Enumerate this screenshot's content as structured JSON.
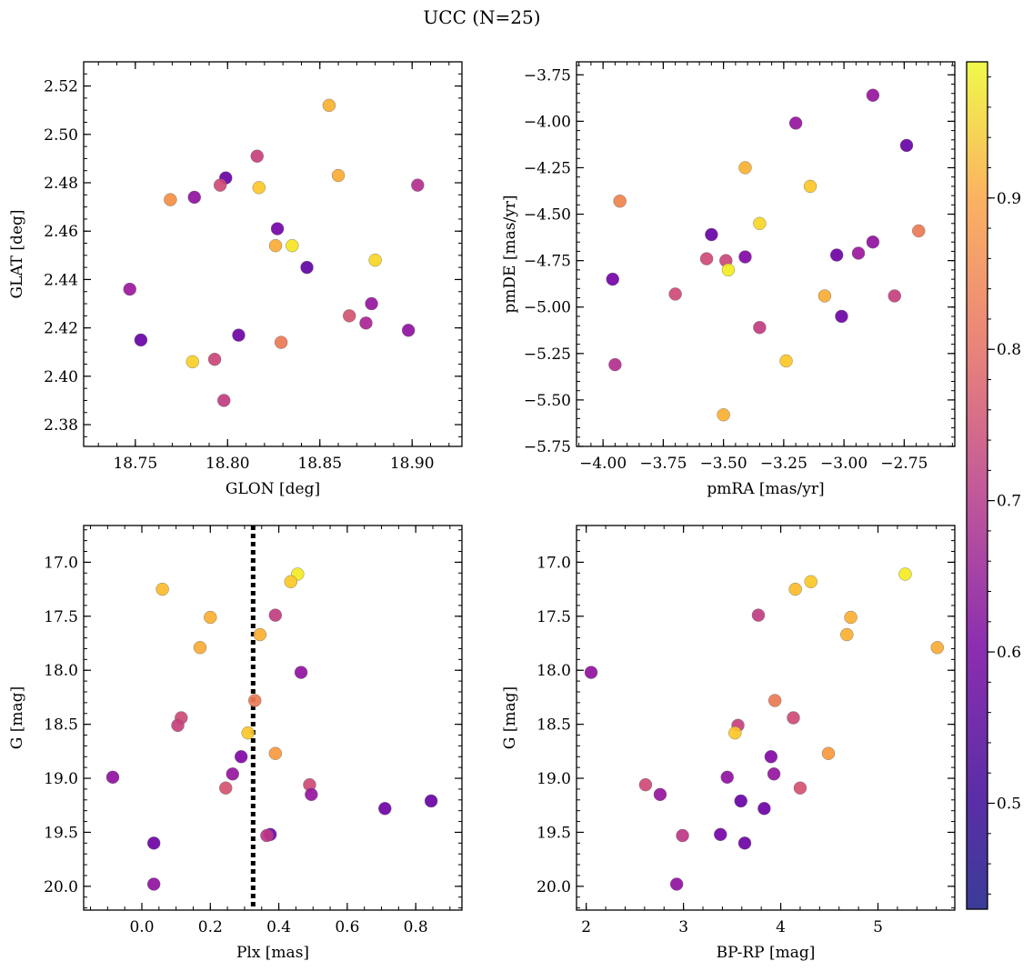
{
  "figure_title": "UCC (N=25)",
  "colorbar": {
    "cmap": "plasma",
    "range": [
      0.43,
      0.99
    ],
    "ticks": [
      0.5,
      0.6,
      0.7,
      0.8,
      0.9
    ],
    "tick_labels": [
      "0.5",
      "0.6",
      "0.7",
      "0.8",
      "0.9"
    ]
  },
  "chart_data": [
    {
      "type": "scatter",
      "xlabel": "GLON [deg]",
      "ylabel": "GLAT [deg]",
      "xlim": [
        18.722,
        18.927
      ],
      "ylim": [
        2.371,
        2.53
      ],
      "xticks": [
        18.75,
        18.8,
        18.85,
        18.9
      ],
      "xtick_labels": [
        "18.75",
        "18.80",
        "18.85",
        "18.90"
      ],
      "yticks": [
        2.38,
        2.4,
        2.42,
        2.44,
        2.46,
        2.48,
        2.5,
        2.52
      ],
      "ytick_labels": [
        "2.38",
        "2.40",
        "2.42",
        "2.44",
        "2.46",
        "2.48",
        "2.50",
        "2.52"
      ],
      "x_minor_step": 0.01,
      "y_minor_step": 0.005,
      "points": [
        {
          "x": 18.855,
          "y": 2.512,
          "c": 0.88
        },
        {
          "x": 18.816,
          "y": 2.491,
          "c": 0.66
        },
        {
          "x": 18.86,
          "y": 2.483,
          "c": 0.87
        },
        {
          "x": 18.799,
          "y": 2.482,
          "c": 0.48
        },
        {
          "x": 18.903,
          "y": 2.479,
          "c": 0.62
        },
        {
          "x": 18.796,
          "y": 2.479,
          "c": 0.68
        },
        {
          "x": 18.817,
          "y": 2.478,
          "c": 0.92
        },
        {
          "x": 18.782,
          "y": 2.474,
          "c": 0.55
        },
        {
          "x": 18.769,
          "y": 2.473,
          "c": 0.82
        },
        {
          "x": 18.827,
          "y": 2.461,
          "c": 0.5
        },
        {
          "x": 18.826,
          "y": 2.454,
          "c": 0.87
        },
        {
          "x": 18.835,
          "y": 2.454,
          "c": 0.96
        },
        {
          "x": 18.88,
          "y": 2.448,
          "c": 0.94
        },
        {
          "x": 18.843,
          "y": 2.445,
          "c": 0.47
        },
        {
          "x": 18.747,
          "y": 2.436,
          "c": 0.57
        },
        {
          "x": 18.878,
          "y": 2.43,
          "c": 0.56
        },
        {
          "x": 18.866,
          "y": 2.425,
          "c": 0.7
        },
        {
          "x": 18.875,
          "y": 2.422,
          "c": 0.6
        },
        {
          "x": 18.898,
          "y": 2.419,
          "c": 0.55
        },
        {
          "x": 18.806,
          "y": 2.417,
          "c": 0.49
        },
        {
          "x": 18.753,
          "y": 2.415,
          "c": 0.48
        },
        {
          "x": 18.829,
          "y": 2.414,
          "c": 0.78
        },
        {
          "x": 18.781,
          "y": 2.406,
          "c": 0.93
        },
        {
          "x": 18.793,
          "y": 2.407,
          "c": 0.67
        },
        {
          "x": 18.798,
          "y": 2.39,
          "c": 0.65
        }
      ]
    },
    {
      "type": "scatter",
      "xlabel": "pmRA [mas/yr]",
      "ylabel": "pmDE [mas/yr]",
      "xlim": [
        -4.11,
        -2.54
      ],
      "ylim": [
        -5.75,
        -3.68
      ],
      "xticks": [
        -4.0,
        -3.75,
        -3.5,
        -3.25,
        -3.0,
        -2.75
      ],
      "xtick_labels": [
        "−4.00",
        "−3.75",
        "−3.50",
        "−3.25",
        "−3.00",
        "−2.75"
      ],
      "yticks": [
        -5.75,
        -5.5,
        -5.25,
        -5.0,
        -4.75,
        -4.5,
        -4.25,
        -4.0,
        -3.75
      ],
      "ytick_labels": [
        "−5.75",
        "−5.50",
        "−5.25",
        "−5.00",
        "−4.75",
        "−4.50",
        "−4.25",
        "−4.00",
        "−3.75"
      ],
      "x_minor_step": 0.05,
      "y_minor_step": 0.05,
      "points": [
        {
          "x": -2.88,
          "y": -3.86,
          "c": 0.56
        },
        {
          "x": -3.2,
          "y": -4.01,
          "c": 0.56
        },
        {
          "x": -2.74,
          "y": -4.13,
          "c": 0.48
        },
        {
          "x": -3.41,
          "y": -4.25,
          "c": 0.88
        },
        {
          "x": -3.14,
          "y": -4.35,
          "c": 0.92
        },
        {
          "x": -3.93,
          "y": -4.43,
          "c": 0.8
        },
        {
          "x": -3.35,
          "y": -4.55,
          "c": 0.94
        },
        {
          "x": -2.69,
          "y": -4.59,
          "c": 0.78
        },
        {
          "x": -3.55,
          "y": -4.61,
          "c": 0.48
        },
        {
          "x": -2.88,
          "y": -4.65,
          "c": 0.55
        },
        {
          "x": -3.03,
          "y": -4.72,
          "c": 0.49
        },
        {
          "x": -2.94,
          "y": -4.71,
          "c": 0.57
        },
        {
          "x": -3.41,
          "y": -4.73,
          "c": 0.52
        },
        {
          "x": -3.57,
          "y": -4.74,
          "c": 0.68
        },
        {
          "x": -3.49,
          "y": -4.75,
          "c": 0.67
        },
        {
          "x": -3.48,
          "y": -4.8,
          "c": 0.97
        },
        {
          "x": -3.96,
          "y": -4.85,
          "c": 0.5
        },
        {
          "x": -3.7,
          "y": -4.93,
          "c": 0.68
        },
        {
          "x": -3.08,
          "y": -4.94,
          "c": 0.87
        },
        {
          "x": -2.79,
          "y": -4.94,
          "c": 0.66
        },
        {
          "x": -3.01,
          "y": -5.05,
          "c": 0.49
        },
        {
          "x": -3.35,
          "y": -5.11,
          "c": 0.65
        },
        {
          "x": -3.24,
          "y": -5.29,
          "c": 0.92
        },
        {
          "x": -3.95,
          "y": -5.31,
          "c": 0.62
        },
        {
          "x": -3.5,
          "y": -5.58,
          "c": 0.88
        }
      ]
    },
    {
      "type": "scatter",
      "xlabel": "Plx [mas]",
      "ylabel": "G [mag]",
      "xlim": [
        -0.17,
        0.935
      ],
      "ylim": [
        20.22,
        16.66
      ],
      "xticks": [
        0.0,
        0.2,
        0.4,
        0.6,
        0.8
      ],
      "xtick_labels": [
        "0.0",
        "0.2",
        "0.4",
        "0.6",
        "0.8"
      ],
      "yticks": [
        17.0,
        17.5,
        18.0,
        18.5,
        19.0,
        19.5,
        20.0
      ],
      "ytick_labels": [
        "17.0",
        "17.5",
        "18.0",
        "18.5",
        "19.0",
        "19.5",
        "20.0"
      ],
      "x_minor_step": 0.05,
      "y_minor_step": 0.1,
      "vline": {
        "x": 0.325,
        "style": "dotted"
      },
      "points": [
        {
          "x": 0.455,
          "y": 17.11,
          "c": 0.97
        },
        {
          "x": 0.435,
          "y": 17.18,
          "c": 0.92
        },
        {
          "x": 0.06,
          "y": 17.25,
          "c": 0.9
        },
        {
          "x": 0.39,
          "y": 17.49,
          "c": 0.65
        },
        {
          "x": 0.2,
          "y": 17.51,
          "c": 0.88
        },
        {
          "x": 0.345,
          "y": 17.67,
          "c": 0.88
        },
        {
          "x": 0.17,
          "y": 17.79,
          "c": 0.87
        },
        {
          "x": 0.465,
          "y": 18.02,
          "c": 0.55
        },
        {
          "x": 0.33,
          "y": 18.28,
          "c": 0.78
        },
        {
          "x": 0.115,
          "y": 18.44,
          "c": 0.68
        },
        {
          "x": 0.105,
          "y": 18.51,
          "c": 0.66
        },
        {
          "x": 0.31,
          "y": 18.58,
          "c": 0.92
        },
        {
          "x": 0.39,
          "y": 18.77,
          "c": 0.84
        },
        {
          "x": 0.29,
          "y": 18.8,
          "c": 0.52
        },
        {
          "x": 0.265,
          "y": 18.96,
          "c": 0.56
        },
        {
          "x": -0.085,
          "y": 18.99,
          "c": 0.55
        },
        {
          "x": 0.49,
          "y": 19.06,
          "c": 0.68
        },
        {
          "x": 0.245,
          "y": 19.09,
          "c": 0.7
        },
        {
          "x": 0.495,
          "y": 19.15,
          "c": 0.56
        },
        {
          "x": 0.845,
          "y": 19.21,
          "c": 0.48
        },
        {
          "x": 0.71,
          "y": 19.28,
          "c": 0.49
        },
        {
          "x": 0.375,
          "y": 19.52,
          "c": 0.5
        },
        {
          "x": 0.365,
          "y": 19.53,
          "c": 0.64
        },
        {
          "x": 0.035,
          "y": 19.6,
          "c": 0.49
        },
        {
          "x": 0.035,
          "y": 19.98,
          "c": 0.55
        }
      ]
    },
    {
      "type": "scatter",
      "xlabel": "BP-RP [mag]",
      "ylabel": "G [mag]",
      "xlim": [
        1.9,
        5.79
      ],
      "ylim": [
        20.22,
        16.66
      ],
      "xticks": [
        2,
        3,
        4,
        5
      ],
      "xtick_labels": [
        "2",
        "3",
        "4",
        "5"
      ],
      "yticks": [
        17.0,
        17.5,
        18.0,
        18.5,
        19.0,
        19.5,
        20.0
      ],
      "ytick_labels": [
        "17.0",
        "17.5",
        "18.0",
        "18.5",
        "19.0",
        "19.5",
        "20.0"
      ],
      "x_minor_step": 0.2,
      "y_minor_step": 0.1,
      "points": [
        {
          "x": 5.28,
          "y": 17.11,
          "c": 0.97
        },
        {
          "x": 4.31,
          "y": 17.18,
          "c": 0.92
        },
        {
          "x": 4.15,
          "y": 17.25,
          "c": 0.9
        },
        {
          "x": 3.77,
          "y": 17.49,
          "c": 0.65
        },
        {
          "x": 4.72,
          "y": 17.51,
          "c": 0.88
        },
        {
          "x": 4.68,
          "y": 17.67,
          "c": 0.88
        },
        {
          "x": 5.61,
          "y": 17.79,
          "c": 0.87
        },
        {
          "x": 2.05,
          "y": 18.02,
          "c": 0.55
        },
        {
          "x": 3.94,
          "y": 18.28,
          "c": 0.78
        },
        {
          "x": 4.13,
          "y": 18.44,
          "c": 0.68
        },
        {
          "x": 3.56,
          "y": 18.51,
          "c": 0.66
        },
        {
          "x": 3.53,
          "y": 18.58,
          "c": 0.92
        },
        {
          "x": 4.49,
          "y": 18.77,
          "c": 0.84
        },
        {
          "x": 3.9,
          "y": 18.8,
          "c": 0.52
        },
        {
          "x": 3.93,
          "y": 18.96,
          "c": 0.56
        },
        {
          "x": 3.45,
          "y": 18.99,
          "c": 0.55
        },
        {
          "x": 2.61,
          "y": 19.06,
          "c": 0.68
        },
        {
          "x": 4.2,
          "y": 19.09,
          "c": 0.7
        },
        {
          "x": 2.76,
          "y": 19.15,
          "c": 0.56
        },
        {
          "x": 3.59,
          "y": 19.21,
          "c": 0.48
        },
        {
          "x": 3.83,
          "y": 19.28,
          "c": 0.49
        },
        {
          "x": 3.38,
          "y": 19.52,
          "c": 0.5
        },
        {
          "x": 2.99,
          "y": 19.53,
          "c": 0.64
        },
        {
          "x": 3.63,
          "y": 19.6,
          "c": 0.49
        },
        {
          "x": 2.93,
          "y": 19.98,
          "c": 0.55
        }
      ]
    }
  ]
}
